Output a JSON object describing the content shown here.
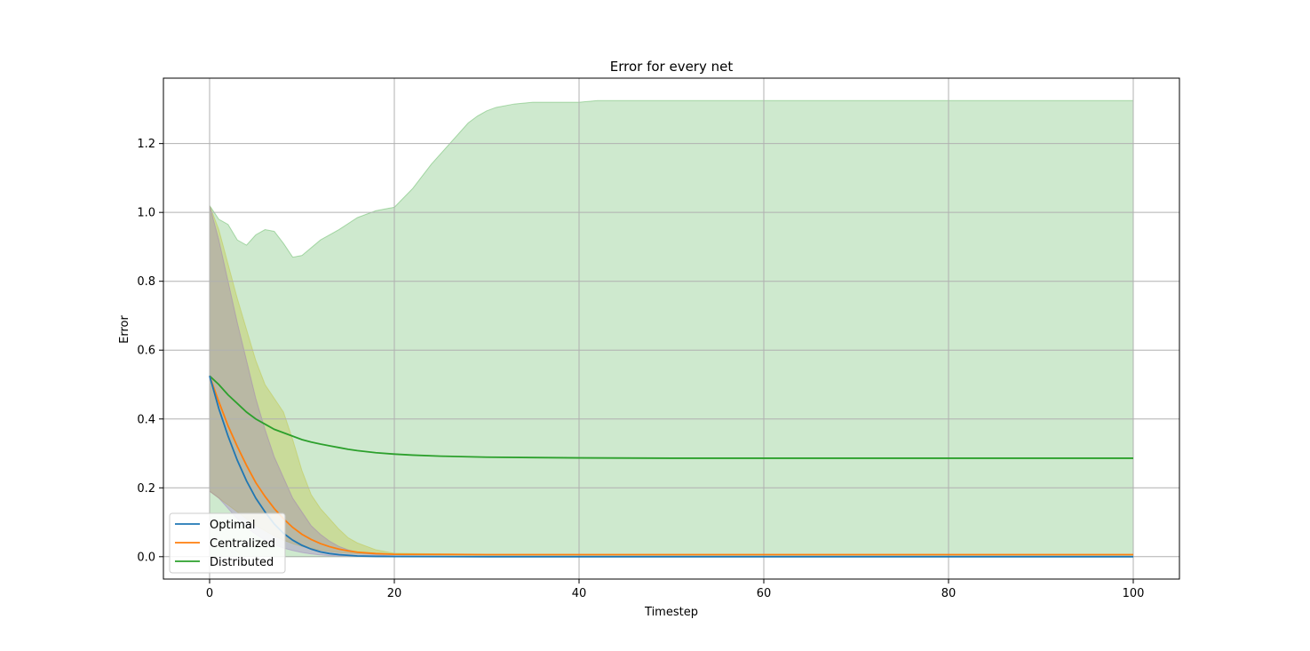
{
  "chart_data": {
    "type": "line",
    "title": "Error for every net",
    "xlabel": "Timestep",
    "ylabel": "Error",
    "xlim": [
      -5,
      105
    ],
    "ylim": [
      -0.065,
      1.39
    ],
    "xticks": [
      0,
      20,
      40,
      60,
      80,
      100
    ],
    "yticks": [
      0.0,
      0.2,
      0.4,
      0.6,
      0.8,
      1.0,
      1.2
    ],
    "xtick_labels": [
      "0",
      "20",
      "40",
      "60",
      "80",
      "100"
    ],
    "ytick_labels": [
      "0.0",
      "0.2",
      "0.4",
      "0.6",
      "0.8",
      "1.0",
      "1.2"
    ],
    "grid": true,
    "legend_position": "lower-left",
    "series": [
      {
        "name": "Optimal",
        "color": "#1f77b4",
        "x": [
          0,
          1,
          2,
          3,
          4,
          5,
          6,
          7,
          8,
          9,
          10,
          11,
          12,
          13,
          14,
          15,
          16,
          18,
          20,
          30,
          40,
          50,
          60,
          70,
          80,
          90,
          100
        ],
        "y": [
          0.525,
          0.43,
          0.35,
          0.28,
          0.22,
          0.17,
          0.13,
          0.095,
          0.068,
          0.048,
          0.033,
          0.022,
          0.014,
          0.009,
          0.006,
          0.004,
          0.002,
          0.001,
          0.0005,
          0.0,
          0.0,
          0.0,
          0.0,
          0.0,
          0.0,
          0.0,
          0.0
        ],
        "band_color": "#9467bd",
        "band_lower": [
          0.19,
          0.17,
          0.14,
          0.11,
          0.085,
          0.065,
          0.048,
          0.035,
          0.025,
          0.018,
          0.012,
          0.008,
          0.005,
          0.003,
          0.002,
          0.001,
          0.0005,
          0.0,
          0.0,
          0.0,
          0.0,
          0.0,
          0.0,
          0.0,
          0.0,
          0.0,
          0.0
        ],
        "band_upper": [
          1.02,
          0.92,
          0.8,
          0.68,
          0.57,
          0.46,
          0.37,
          0.29,
          0.23,
          0.17,
          0.13,
          0.09,
          0.065,
          0.045,
          0.03,
          0.02,
          0.013,
          0.006,
          0.003,
          0.0,
          0.0,
          0.0,
          0.0,
          0.0,
          0.0,
          0.0,
          0.0
        ]
      },
      {
        "name": "Centralized",
        "color": "#ff7f0e",
        "x": [
          0,
          1,
          2,
          3,
          4,
          5,
          6,
          7,
          8,
          9,
          10,
          11,
          12,
          13,
          14,
          15,
          16,
          18,
          20,
          30,
          40,
          50,
          60,
          70,
          80,
          90,
          100
        ],
        "y": [
          0.525,
          0.45,
          0.38,
          0.32,
          0.265,
          0.215,
          0.175,
          0.14,
          0.11,
          0.085,
          0.065,
          0.05,
          0.038,
          0.029,
          0.022,
          0.017,
          0.013,
          0.009,
          0.007,
          0.006,
          0.006,
          0.006,
          0.006,
          0.006,
          0.006,
          0.006,
          0.006
        ],
        "band_color": "#bcbd22",
        "band_lower": [
          0.19,
          0.17,
          0.15,
          0.13,
          0.11,
          0.09,
          0.075,
          0.06,
          0.048,
          0.038,
          0.03,
          0.024,
          0.019,
          0.015,
          0.012,
          0.01,
          0.009,
          0.008,
          0.007,
          0.006,
          0.006,
          0.006,
          0.006,
          0.006,
          0.006,
          0.006,
          0.006
        ],
        "band_upper": [
          1.02,
          0.95,
          0.85,
          0.75,
          0.66,
          0.57,
          0.5,
          0.46,
          0.42,
          0.34,
          0.25,
          0.18,
          0.14,
          0.11,
          0.08,
          0.055,
          0.04,
          0.02,
          0.01,
          0.006,
          0.006,
          0.006,
          0.006,
          0.006,
          0.006,
          0.006,
          0.006
        ]
      },
      {
        "name": "Distributed",
        "color": "#2ca02c",
        "x": [
          0,
          1,
          2,
          3,
          4,
          5,
          6,
          7,
          8,
          9,
          10,
          11,
          12,
          13,
          14,
          15,
          16,
          18,
          20,
          22,
          25,
          30,
          35,
          40,
          50,
          60,
          70,
          80,
          90,
          100
        ],
        "y": [
          0.525,
          0.5,
          0.47,
          0.445,
          0.42,
          0.4,
          0.385,
          0.37,
          0.36,
          0.35,
          0.34,
          0.333,
          0.327,
          0.322,
          0.317,
          0.312,
          0.308,
          0.302,
          0.298,
          0.295,
          0.292,
          0.289,
          0.288,
          0.287,
          0.286,
          0.286,
          0.286,
          0.286,
          0.286,
          0.286
        ],
        "band_color": "#2ca02c",
        "band_lower": [
          0.0,
          0.0,
          0.0,
          0.0,
          0.0,
          0.0,
          0.0,
          0.0,
          0.0,
          0.0,
          0.0,
          0.0,
          0.0,
          0.0,
          0.0,
          0.0,
          0.0,
          0.0,
          0.0,
          0.0,
          0.0,
          0.0,
          0.0,
          0.0,
          0.0,
          0.0,
          0.0,
          0.0,
          0.0,
          0.0
        ],
        "band_upper_x": [
          0,
          1,
          2,
          3,
          4,
          5,
          6,
          7,
          8,
          9,
          10,
          12,
          14,
          16,
          18,
          19,
          20,
          22,
          24,
          26,
          28,
          29,
          30,
          31,
          33,
          35,
          38,
          40,
          42,
          50,
          60,
          70,
          80,
          90,
          100
        ],
        "band_upper": [
          1.02,
          0.98,
          0.965,
          0.92,
          0.905,
          0.935,
          0.95,
          0.945,
          0.91,
          0.87,
          0.875,
          0.92,
          0.95,
          0.985,
          1.005,
          1.01,
          1.015,
          1.07,
          1.14,
          1.2,
          1.26,
          1.28,
          1.295,
          1.305,
          1.315,
          1.32,
          1.32,
          1.32,
          1.325,
          1.325,
          1.325,
          1.325,
          1.325,
          1.325,
          1.325
        ]
      }
    ]
  }
}
